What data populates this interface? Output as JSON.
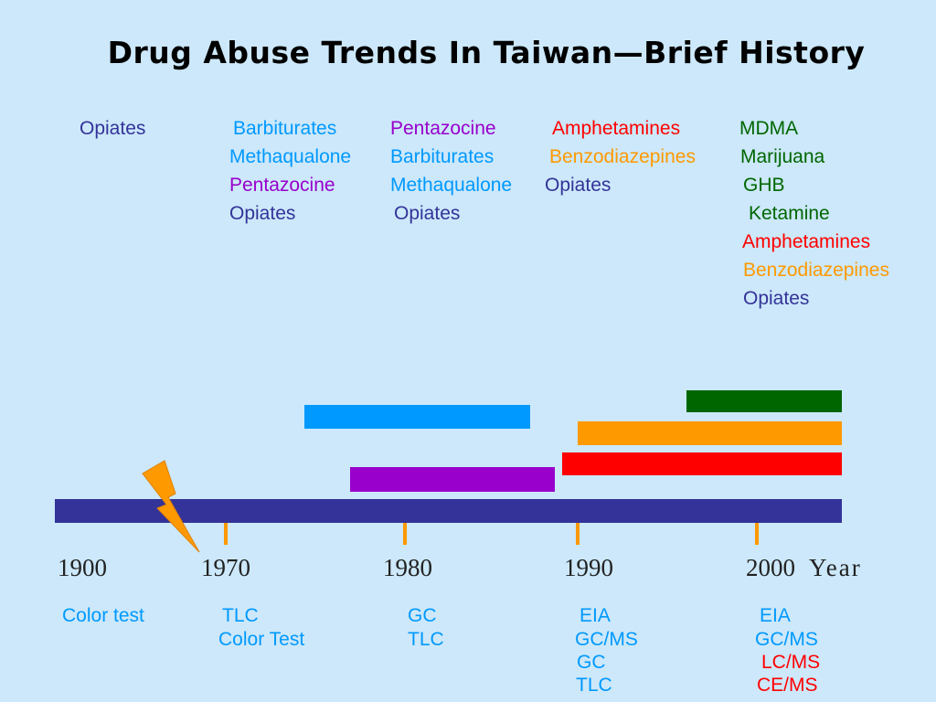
{
  "title": "Drug Abuse Trends In Taiwan—Brief History",
  "colors": {
    "background": "#cce8fa",
    "timeline": "#333399",
    "tick": "#ff9900",
    "opiates": "#333399",
    "barbiturates": "#0099ff",
    "pentazocine": "#9900cc",
    "amphetamines": "#ff0000",
    "benzodiazepines": "#ff9900",
    "mdma_group": "#006600"
  },
  "drugs": {
    "col1": [
      "Opiates"
    ],
    "col2": [
      "Barbiturates",
      "Methaqualone",
      "Pentazocine",
      "Opiates"
    ],
    "col3": [
      "Pentazocine",
      "Barbiturates",
      "Methaqualone",
      "Opiates"
    ],
    "col4": [
      "Amphetamines",
      "Benzodiazepines",
      "Opiates"
    ],
    "col5": [
      "MDMA",
      "Marijuana",
      "GHB",
      "Ketamine",
      "Amphetamines",
      "Benzodiazepines",
      "Opiates"
    ]
  },
  "timeline": {
    "years": [
      "1900",
      "1970",
      "1980",
      "1990",
      "2000"
    ],
    "axis_label": "Year",
    "bars": [
      {
        "name": "barbiturates-period",
        "color": "#0099ff"
      },
      {
        "name": "pentazocine-period",
        "color": "#9900cc"
      },
      {
        "name": "mdma-period",
        "color": "#006600"
      },
      {
        "name": "benzodiazepines-period",
        "color": "#ff9900"
      },
      {
        "name": "amphetamines-period",
        "color": "#ff0000"
      }
    ]
  },
  "methods": {
    "col1": [
      "Color test"
    ],
    "col2": [
      "TLC",
      "Color Test"
    ],
    "col3": [
      "GC",
      "TLC"
    ],
    "col4": [
      "EIA",
      "GC/MS",
      "GC",
      "TLC"
    ],
    "col5": [
      "EIA",
      "GC/MS",
      "LC/MS",
      "CE/MS"
    ]
  }
}
